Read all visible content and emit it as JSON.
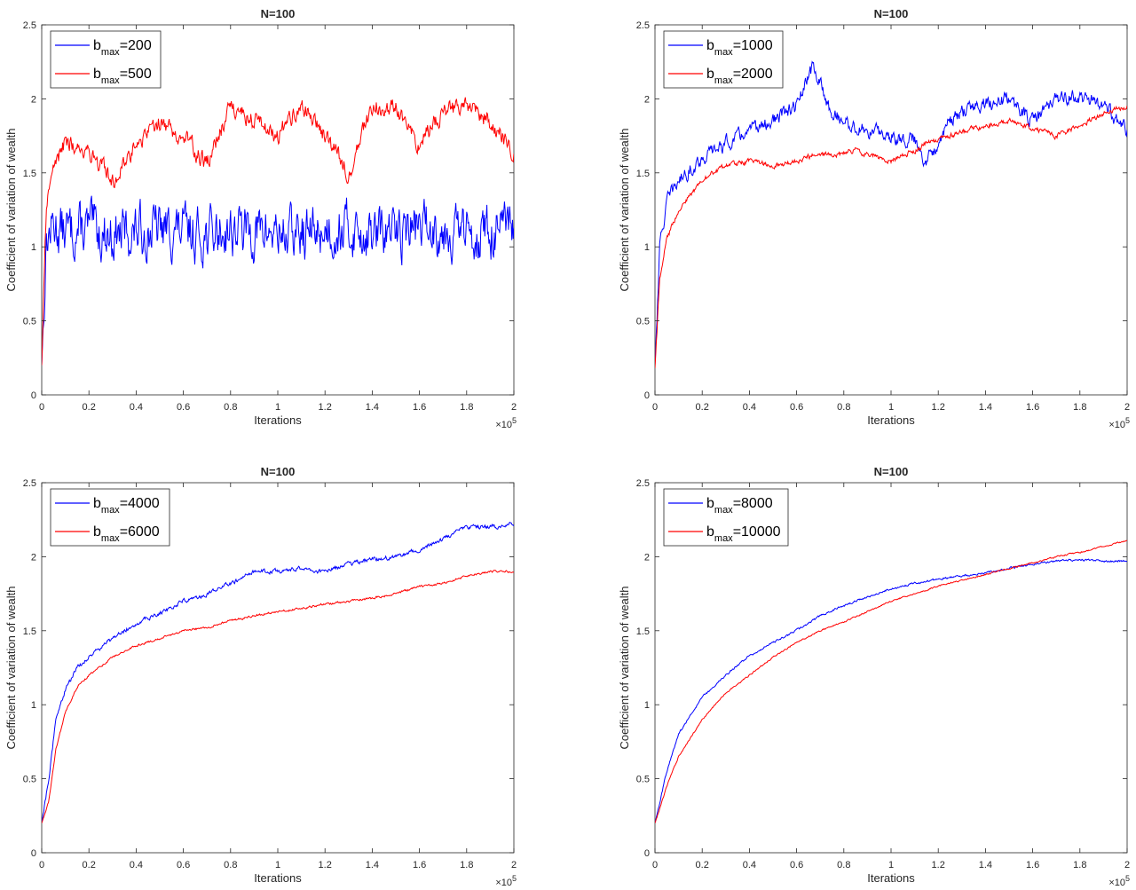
{
  "chart_data": [
    {
      "type": "line",
      "title": "N=100",
      "xlabel": "Iterations",
      "ylabel": "Coefficient of variation of wealth",
      "xlim": [
        0,
        200000
      ],
      "ylim": [
        0,
        2.5
      ],
      "x_exponent_base": "×10",
      "x_exponent_power": "5",
      "x_ticks": [
        "0",
        "0.2",
        "0.4",
        "0.6",
        "0.8",
        "1",
        "1.2",
        "1.4",
        "1.6",
        "1.8",
        "2"
      ],
      "y_ticks": [
        "0",
        "0.5",
        "1",
        "1.5",
        "2",
        "2.5"
      ],
      "legend_position": "top-left",
      "grid": false,
      "x": [
        0,
        2000,
        5000,
        10000,
        20000,
        30000,
        40000,
        50000,
        60000,
        70000,
        80000,
        90000,
        100000,
        110000,
        120000,
        130000,
        140000,
        150000,
        160000,
        170000,
        180000,
        190000,
        200000
      ],
      "series": [
        {
          "legend_base": "b",
          "legend_sub": "max",
          "legend_value": "=200",
          "color": "#0000ff",
          "noise": 0.14,
          "values": [
            0.2,
            1.05,
            1.15,
            1.1,
            1.12,
            1.08,
            1.1,
            1.12,
            1.1,
            1.08,
            1.12,
            1.1,
            1.1,
            1.08,
            1.12,
            1.12,
            1.08,
            1.1,
            1.15,
            1.12,
            1.1,
            1.1,
            1.1
          ]
        },
        {
          "legend_base": "b",
          "legend_sub": "max",
          "legend_value": "=500",
          "color": "#ff0000",
          "noise": 0.05,
          "values": [
            0.2,
            1.3,
            1.55,
            1.7,
            1.65,
            1.45,
            1.7,
            1.85,
            1.75,
            1.55,
            1.95,
            1.85,
            1.75,
            1.95,
            1.75,
            1.5,
            1.95,
            1.95,
            1.7,
            1.9,
            1.95,
            1.85,
            1.65
          ]
        }
      ]
    },
    {
      "type": "line",
      "title": "N=100",
      "xlabel": "Iterations",
      "ylabel": "Coefficient of variation of wealth",
      "xlim": [
        0,
        200000
      ],
      "ylim": [
        0,
        2.5
      ],
      "x_exponent_base": "×10",
      "x_exponent_power": "5",
      "x_ticks": [
        "0",
        "0.2",
        "0.4",
        "0.6",
        "0.8",
        "1",
        "1.2",
        "1.4",
        "1.6",
        "1.8",
        "2"
      ],
      "y_ticks": [
        "0",
        "0.5",
        "1",
        "1.5",
        "2",
        "2.5"
      ],
      "legend_position": "top-left",
      "grid": false,
      "x": [
        0,
        2000,
        5000,
        10000,
        20000,
        30000,
        40000,
        50000,
        60000,
        67000,
        75000,
        85000,
        100000,
        110000,
        115000,
        125000,
        135000,
        150000,
        160000,
        170000,
        180000,
        190000,
        200000
      ],
      "series": [
        {
          "legend_base": "b",
          "legend_sub": "max",
          "legend_value": "=1000",
          "color": "#0000ff",
          "noise": 0.04,
          "values": [
            0.2,
            1.0,
            1.3,
            1.45,
            1.6,
            1.7,
            1.78,
            1.85,
            1.95,
            2.22,
            1.9,
            1.8,
            1.75,
            1.72,
            1.58,
            1.85,
            1.95,
            2.0,
            1.85,
            2.0,
            2.02,
            1.95,
            1.78
          ]
        },
        {
          "legend_base": "b",
          "legend_sub": "max",
          "legend_value": "=2000",
          "color": "#ff0000",
          "noise": 0.015,
          "values": [
            0.18,
            0.8,
            1.05,
            1.25,
            1.45,
            1.55,
            1.58,
            1.55,
            1.58,
            1.62,
            1.62,
            1.65,
            1.58,
            1.65,
            1.7,
            1.75,
            1.8,
            1.85,
            1.8,
            1.75,
            1.82,
            1.9,
            1.95
          ]
        }
      ]
    },
    {
      "type": "line",
      "title": "N=100",
      "xlabel": "Iterations",
      "ylabel": "Coefficient of variation of wealth",
      "xlim": [
        0,
        200000
      ],
      "ylim": [
        0,
        2.5
      ],
      "x_exponent_base": "×10",
      "x_exponent_power": "5",
      "x_ticks": [
        "0",
        "0.2",
        "0.4",
        "0.6",
        "0.8",
        "1",
        "1.2",
        "1.4",
        "1.6",
        "1.8",
        "2"
      ],
      "y_ticks": [
        "0",
        "0.5",
        "1",
        "1.5",
        "2",
        "2.5"
      ],
      "legend_position": "top-left",
      "grid": false,
      "x": [
        0,
        3000,
        6000,
        10000,
        15000,
        20000,
        30000,
        40000,
        50000,
        60000,
        70000,
        80000,
        90000,
        100000,
        110000,
        120000,
        130000,
        140000,
        150000,
        160000,
        170000,
        180000,
        190000,
        200000
      ],
      "series": [
        {
          "legend_base": "b",
          "legend_sub": "max",
          "legend_value": "=4000",
          "color": "#0000ff",
          "noise": 0.012,
          "values": [
            0.2,
            0.5,
            0.9,
            1.1,
            1.25,
            1.32,
            1.45,
            1.55,
            1.62,
            1.7,
            1.75,
            1.82,
            1.9,
            1.9,
            1.92,
            1.9,
            1.95,
            1.98,
            2.0,
            2.05,
            2.12,
            2.2,
            2.2,
            2.22
          ]
        },
        {
          "legend_base": "b",
          "legend_sub": "max",
          "legend_value": "=6000",
          "color": "#ff0000",
          "noise": 0.006,
          "values": [
            0.2,
            0.35,
            0.7,
            0.95,
            1.12,
            1.2,
            1.32,
            1.4,
            1.45,
            1.5,
            1.52,
            1.57,
            1.6,
            1.63,
            1.65,
            1.68,
            1.7,
            1.72,
            1.75,
            1.8,
            1.82,
            1.87,
            1.9,
            1.9
          ]
        }
      ]
    },
    {
      "type": "line",
      "title": "N=100",
      "xlabel": "Iterations",
      "ylabel": "Coefficient of variation of wealth",
      "xlim": [
        0,
        200000
      ],
      "ylim": [
        0,
        2.5
      ],
      "x_exponent_base": "×10",
      "x_exponent_power": "5",
      "x_ticks": [
        "0",
        "0.2",
        "0.4",
        "0.6",
        "0.8",
        "1",
        "1.2",
        "1.4",
        "1.6",
        "1.8",
        "2"
      ],
      "y_ticks": [
        "0",
        "0.5",
        "1",
        "1.5",
        "2",
        "2.5"
      ],
      "legend_position": "top-left",
      "grid": false,
      "x": [
        0,
        5000,
        10000,
        20000,
        30000,
        40000,
        50000,
        60000,
        70000,
        80000,
        90000,
        100000,
        110000,
        120000,
        130000,
        140000,
        150000,
        160000,
        170000,
        180000,
        190000,
        200000
      ],
      "series": [
        {
          "legend_base": "b",
          "legend_sub": "max",
          "legend_value": "=8000",
          "color": "#0000ff",
          "noise": 0.006,
          "values": [
            0.2,
            0.55,
            0.8,
            1.05,
            1.2,
            1.33,
            1.42,
            1.5,
            1.6,
            1.67,
            1.73,
            1.78,
            1.82,
            1.85,
            1.87,
            1.89,
            1.92,
            1.95,
            1.97,
            1.98,
            1.97,
            1.97
          ]
        },
        {
          "legend_base": "b",
          "legend_sub": "max",
          "legend_value": "=10000",
          "color": "#ff0000",
          "noise": 0.004,
          "values": [
            0.2,
            0.45,
            0.65,
            0.9,
            1.08,
            1.2,
            1.32,
            1.42,
            1.5,
            1.56,
            1.63,
            1.7,
            1.75,
            1.8,
            1.84,
            1.88,
            1.92,
            1.96,
            2.0,
            2.03,
            2.07,
            2.11
          ]
        }
      ]
    }
  ]
}
